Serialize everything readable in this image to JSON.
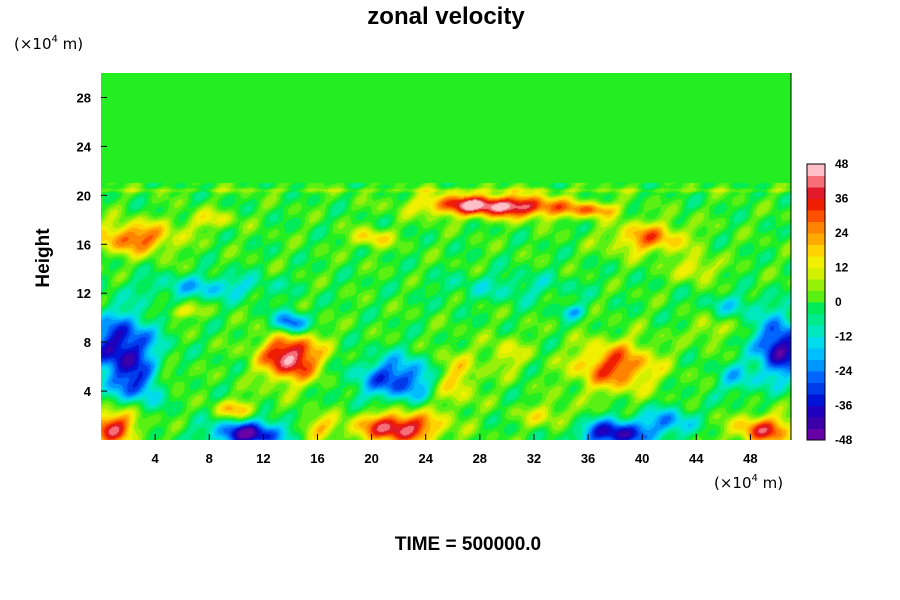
{
  "chart_data": {
    "type": "heatmap",
    "title": "zonal velocity",
    "ylabel": "Height",
    "y_unit_prefix": "(×10",
    "y_unit_exp": "4",
    "y_unit_suffix": " m)",
    "x_unit_prefix": "(×10",
    "x_unit_exp": "4",
    "x_unit_suffix": " m)",
    "xlim": [
      0,
      51
    ],
    "ylim": [
      0,
      30
    ],
    "x_ticks": [
      4,
      8,
      12,
      16,
      20,
      24,
      28,
      32,
      36,
      40,
      44,
      48
    ],
    "y_ticks": [
      4,
      8,
      12,
      16,
      20,
      24,
      28
    ],
    "colorbar": {
      "min": -48,
      "max": 48,
      "step": 4,
      "tick_labels": [
        48,
        36,
        24,
        12,
        0,
        -12,
        -24,
        -36,
        -48
      ]
    },
    "background_value": 0,
    "features": [
      {
        "x": 2.5,
        "y": 16.5,
        "value": 32,
        "rx": 3.0,
        "ry": 1.3
      },
      {
        "x": 0.8,
        "y": 1.0,
        "value": 40,
        "rx": 1.8,
        "ry": 1.4
      },
      {
        "x": 1.5,
        "y": 7.5,
        "value": -42,
        "rx": 2.5,
        "ry": 2.8
      },
      {
        "x": 3.0,
        "y": 4.5,
        "value": -22,
        "rx": 2.0,
        "ry": 1.5
      },
      {
        "x": 5.0,
        "y": 5.0,
        "value": 18,
        "rx": 1.0,
        "ry": 1.0
      },
      {
        "x": 14.0,
        "y": 6.8,
        "value": 48,
        "rx": 2.2,
        "ry": 2.0
      },
      {
        "x": 14.0,
        "y": 9.5,
        "value": -38,
        "rx": 1.2,
        "ry": 1.0
      },
      {
        "x": 11.0,
        "y": 0.5,
        "value": -44,
        "rx": 2.8,
        "ry": 1.1
      },
      {
        "x": 16.0,
        "y": 1.0,
        "value": 20,
        "rx": 1.5,
        "ry": 1.0
      },
      {
        "x": 22.0,
        "y": 1.0,
        "value": 46,
        "rx": 3.0,
        "ry": 1.3
      },
      {
        "x": 22.0,
        "y": 5.0,
        "value": -34,
        "rx": 3.0,
        "ry": 1.8
      },
      {
        "x": 26.0,
        "y": 5.0,
        "value": 22,
        "rx": 1.8,
        "ry": 2.2
      },
      {
        "x": 27.5,
        "y": 19.2,
        "value": 42,
        "rx": 4.0,
        "ry": 0.9
      },
      {
        "x": 32.0,
        "y": 19.0,
        "value": 28,
        "rx": 3.5,
        "ry": 0.9
      },
      {
        "x": 36.5,
        "y": 18.8,
        "value": 24,
        "rx": 1.8,
        "ry": 0.6
      },
      {
        "x": 20.0,
        "y": 16.5,
        "value": 20,
        "rx": 1.5,
        "ry": 0.8
      },
      {
        "x": 40.5,
        "y": 16.5,
        "value": 28,
        "rx": 2.8,
        "ry": 1.3
      },
      {
        "x": 38.0,
        "y": 6.0,
        "value": 34,
        "rx": 3.0,
        "ry": 2.0
      },
      {
        "x": 38.0,
        "y": 0.5,
        "value": -42,
        "rx": 2.6,
        "ry": 1.2
      },
      {
        "x": 42.0,
        "y": 1.5,
        "value": -22,
        "rx": 1.8,
        "ry": 1.2
      },
      {
        "x": 49.0,
        "y": 0.8,
        "value": 36,
        "rx": 2.2,
        "ry": 1.2
      },
      {
        "x": 50.2,
        "y": 7.5,
        "value": -44,
        "rx": 1.8,
        "ry": 2.4
      },
      {
        "x": 47.0,
        "y": 5.0,
        "value": -16,
        "rx": 1.5,
        "ry": 1.3
      },
      {
        "x": 8.0,
        "y": 12.5,
        "value": -18,
        "rx": 4.5,
        "ry": 1.0
      },
      {
        "x": 30.0,
        "y": 12.5,
        "value": -10,
        "rx": 5.0,
        "ry": 1.2
      },
      {
        "x": 47.0,
        "y": 11.0,
        "value": -12,
        "rx": 2.5,
        "ry": 1.0
      },
      {
        "x": 6.0,
        "y": 10.5,
        "value": 16,
        "rx": 1.5,
        "ry": 0.6
      },
      {
        "x": 30.0,
        "y": 7.0,
        "value": 14,
        "rx": 1.5,
        "ry": 1.5
      },
      {
        "x": 44.0,
        "y": 14.0,
        "value": 18,
        "rx": 1.5,
        "ry": 1.0
      },
      {
        "x": 8.0,
        "y": 18.0,
        "value": 14,
        "rx": 2.0,
        "ry": 0.8
      },
      {
        "x": 10.0,
        "y": 2.5,
        "value": 22,
        "rx": 1.5,
        "ry": 0.8
      },
      {
        "x": 33.0,
        "y": 2.0,
        "value": 14,
        "rx": 2.0,
        "ry": 1.0
      },
      {
        "x": 45.0,
        "y": 9.0,
        "value": 14,
        "rx": 1.2,
        "ry": 1.0
      },
      {
        "x": 35.0,
        "y": 10.5,
        "value": -18,
        "rx": 1.0,
        "ry": 0.6
      }
    ],
    "stratosphere_band": {
      "y": 20.4,
      "value": 6
    },
    "grid": false,
    "colorbar_placement": "right"
  },
  "footer": {
    "time_label": "TIME = 500000.0"
  },
  "colors": {
    "background": "#ffffff",
    "text": "#000000",
    "upper_field": "#22ee22"
  }
}
